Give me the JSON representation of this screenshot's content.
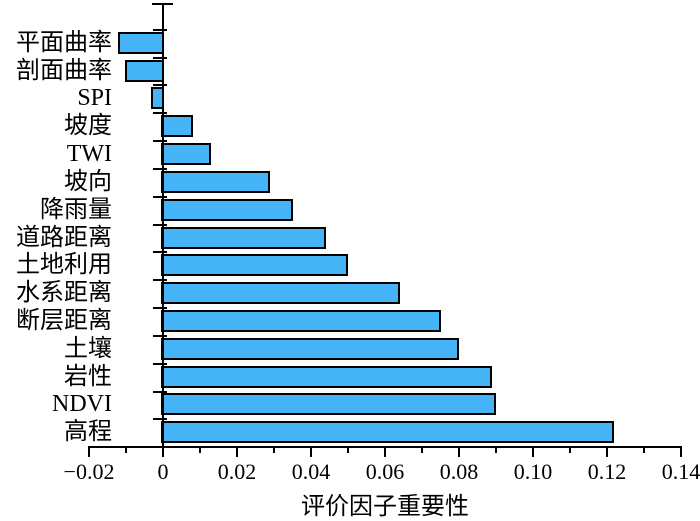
{
  "chart_data": {
    "type": "bar",
    "orientation": "horizontal",
    "title": "",
    "xlabel": "评价因子重要性",
    "ylabel": "",
    "categories": [
      "平面曲率",
      "剖面曲率",
      "SPI",
      "坡度",
      "TWI",
      "坡向",
      "降雨量",
      "道路距离",
      "土地利用",
      "水系距离",
      "断层距离",
      "土壤",
      "岩性",
      "NDVI",
      "高程"
    ],
    "values": [
      -0.012,
      -0.01,
      -0.003,
      0.008,
      0.013,
      0.029,
      0.035,
      0.044,
      0.05,
      0.064,
      0.075,
      0.08,
      0.089,
      0.09,
      0.122
    ],
    "xlim": [
      -0.02,
      0.14
    ],
    "x_major_step": 0.02,
    "x_minor_step": 0.01,
    "x_tick_labels": [
      "−0.02",
      "0",
      "0.02",
      "0.04",
      "0.06",
      "0.08",
      "0.10",
      "0.12",
      "0.14"
    ],
    "grid": false,
    "legend": null,
    "bar_color": "#45B4F6",
    "bar_border_color": "#000000",
    "axis_color": "#000000"
  }
}
